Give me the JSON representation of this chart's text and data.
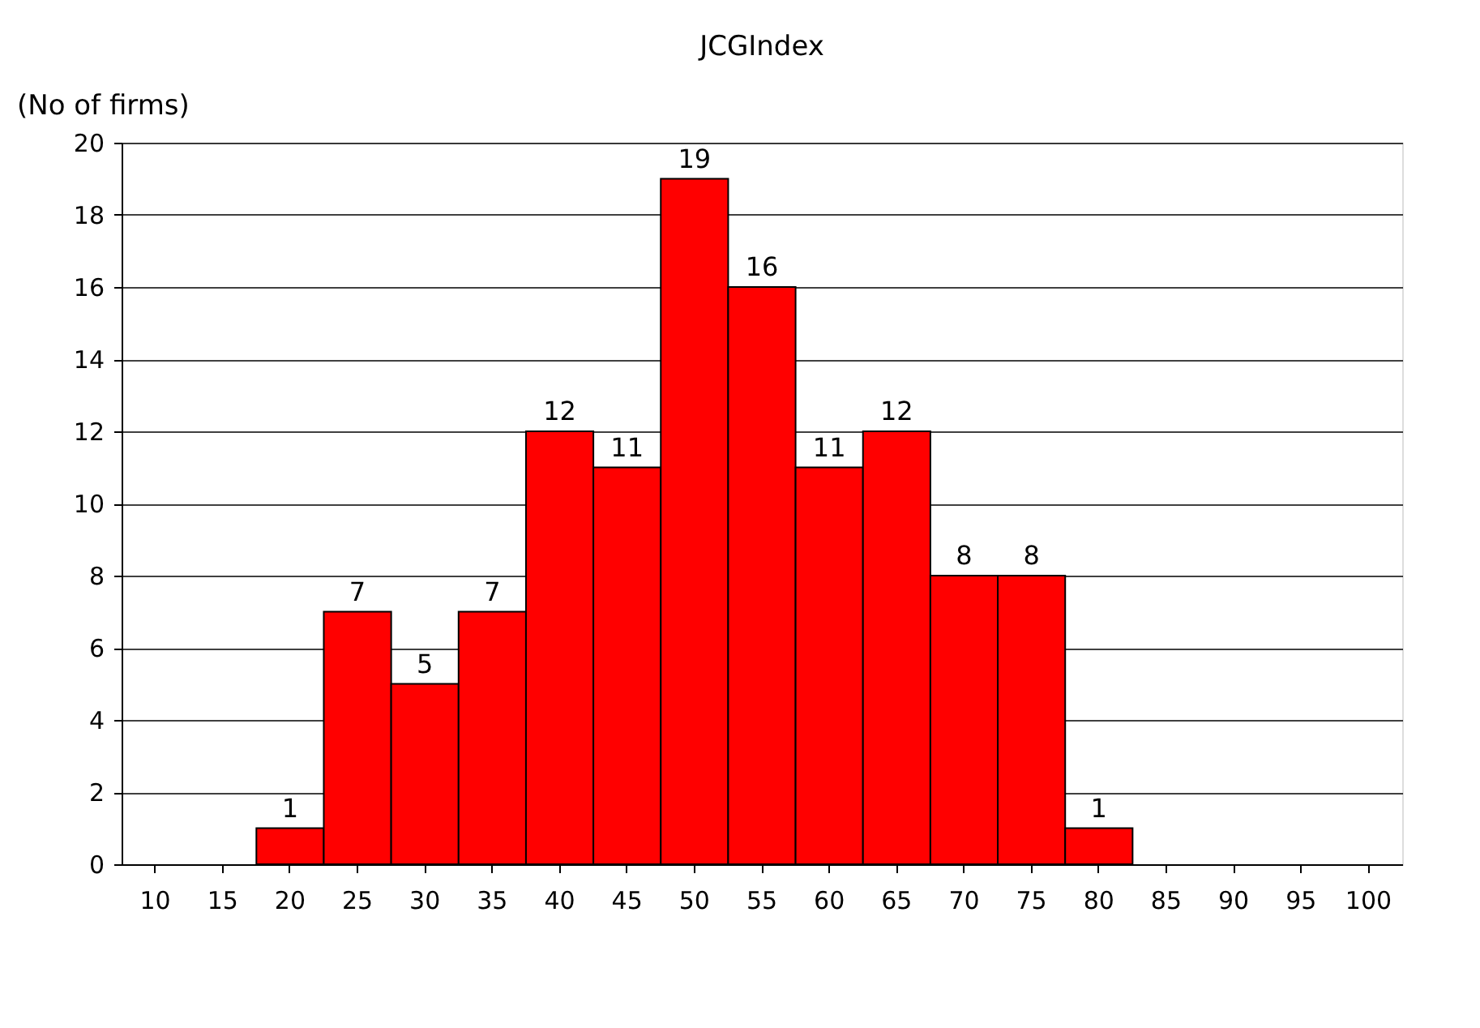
{
  "chart_data": {
    "type": "bar",
    "title": "JCGIndex",
    "ylabel": "(No of firms)",
    "categories": [
      "10",
      "15",
      "20",
      "25",
      "30",
      "35",
      "40",
      "45",
      "50",
      "55",
      "60",
      "65",
      "70",
      "75",
      "80",
      "85",
      "90",
      "95",
      "100"
    ],
    "values": [
      0,
      0,
      1,
      7,
      5,
      7,
      12,
      11,
      19,
      16,
      11,
      12,
      8,
      8,
      1,
      0,
      0,
      0,
      0
    ],
    "value_labels": [
      null,
      null,
      "1",
      "7",
      "5",
      "7",
      "12",
      "11",
      "19",
      "16",
      "11",
      "12",
      "8",
      "8",
      "1",
      null,
      null,
      null,
      null
    ],
    "color": "#ff0000",
    "ylim": [
      0,
      20
    ],
    "yticks": [
      0,
      2,
      4,
      6,
      8,
      10,
      12,
      14,
      16,
      18,
      20
    ],
    "grid": "y"
  }
}
